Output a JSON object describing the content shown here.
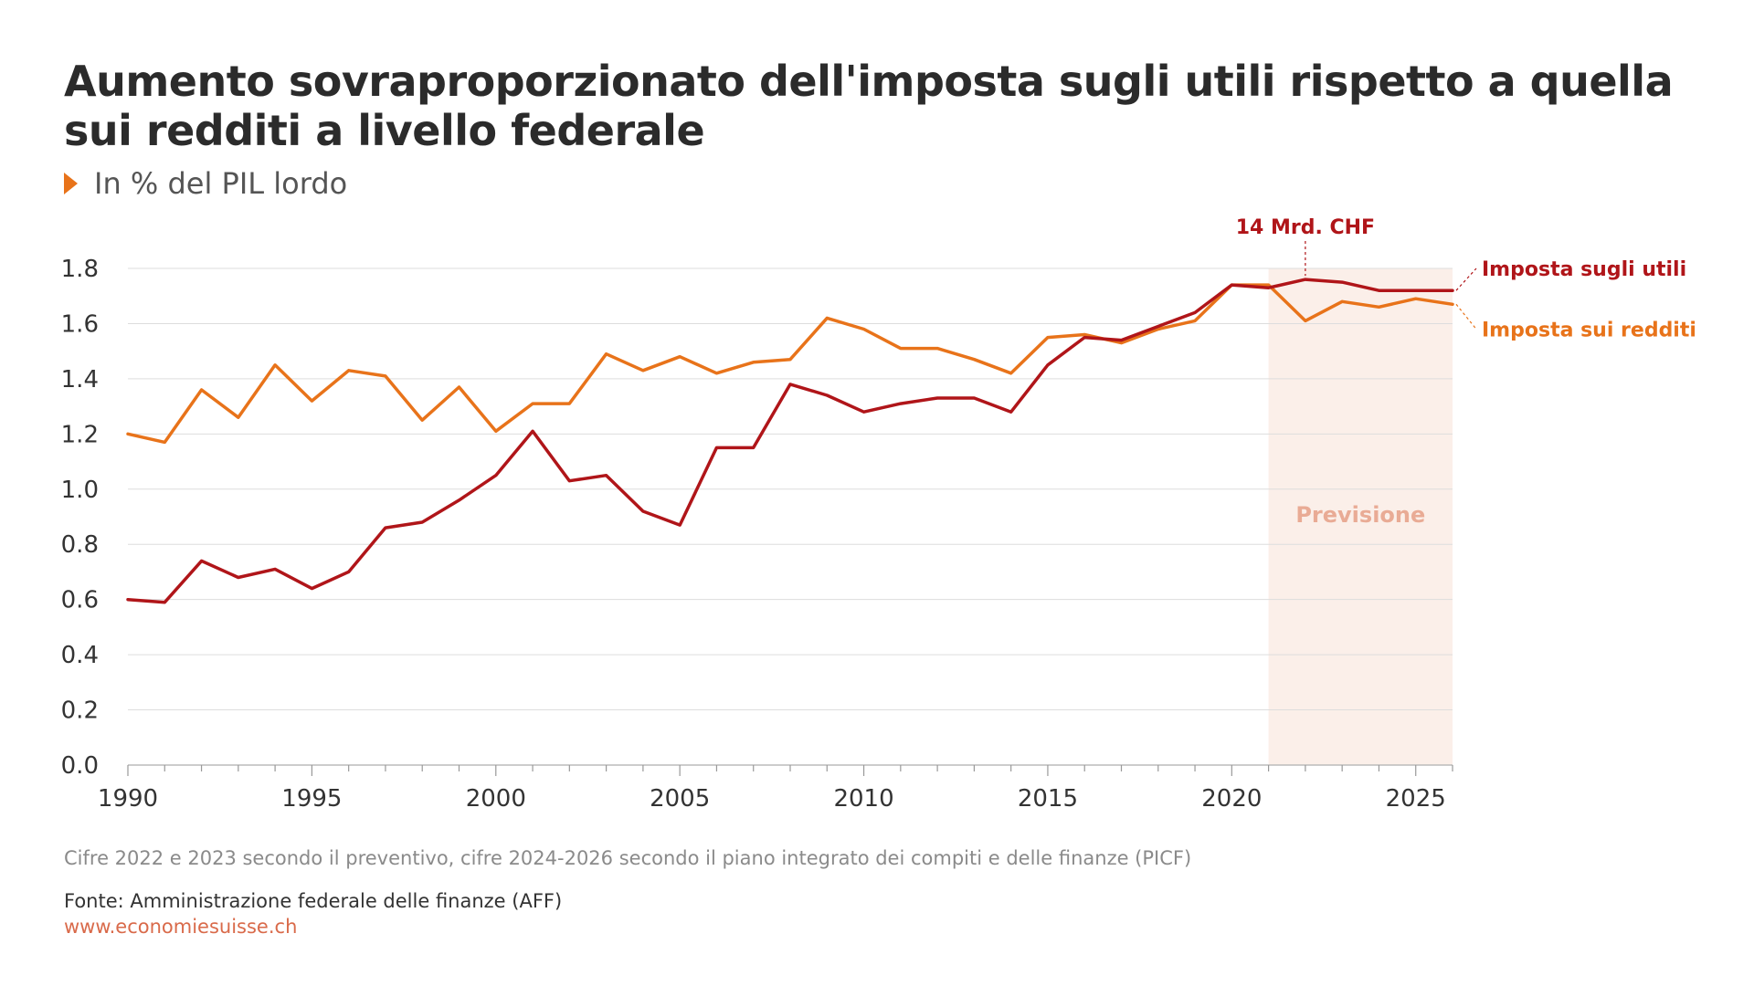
{
  "header": {
    "title": "Aumento sovraproporzionato dell'imposta sugli utili rispetto a quella sui redditi a livello federale",
    "subtitle": "In % del PIL lordo"
  },
  "footer": {
    "note": "Cifre 2022 e 2023 secondo il preventivo, cifre 2024-2026 secondo il piano integrato dei compiti e delle finanze (PICF)",
    "source": "Fonte: Amministrazione federale delle finanze (AFF)",
    "website": "www.economiesuisse.ch"
  },
  "colors": {
    "accent": "#e8731a",
    "utili": "#b01519",
    "redditi": "#e8731a",
    "forecast_band": "#fbefe9",
    "forecast_text": "#e9ab95",
    "grid": "#dddddd"
  },
  "chart_data": {
    "type": "line",
    "x": [
      1990,
      1991,
      1992,
      1993,
      1994,
      1995,
      1996,
      1997,
      1998,
      1999,
      2000,
      2001,
      2002,
      2003,
      2004,
      2005,
      2006,
      2007,
      2008,
      2009,
      2010,
      2011,
      2012,
      2013,
      2014,
      2015,
      2016,
      2017,
      2018,
      2019,
      2020,
      2021,
      2022,
      2023,
      2024,
      2025,
      2026
    ],
    "series": [
      {
        "name": "Imposta sugli utili",
        "color": "#b01519",
        "values": [
          0.6,
          0.59,
          0.74,
          0.68,
          0.71,
          0.64,
          0.7,
          0.86,
          0.88,
          0.96,
          1.05,
          1.21,
          1.03,
          1.05,
          0.92,
          0.87,
          1.15,
          1.15,
          1.38,
          1.34,
          1.28,
          1.31,
          1.33,
          1.33,
          1.28,
          1.45,
          1.55,
          1.54,
          1.59,
          1.64,
          1.74,
          1.73,
          1.76,
          1.75,
          1.72,
          1.72,
          1.72
        ]
      },
      {
        "name": "Imposta sui redditi",
        "color": "#e8731a",
        "values": [
          1.2,
          1.17,
          1.36,
          1.26,
          1.45,
          1.32,
          1.43,
          1.41,
          1.25,
          1.37,
          1.21,
          1.31,
          1.31,
          1.49,
          1.43,
          1.48,
          1.42,
          1.46,
          1.47,
          1.62,
          1.58,
          1.51,
          1.51,
          1.47,
          1.42,
          1.55,
          1.56,
          1.53,
          1.58,
          1.61,
          1.74,
          1.74,
          1.61,
          1.68,
          1.66,
          1.69,
          1.67
        ]
      }
    ],
    "x_ticks": [
      1990,
      1995,
      2000,
      2005,
      2010,
      2015,
      2020,
      2025
    ],
    "y_ticks": [
      "0.0",
      "0.2",
      "0.4",
      "0.6",
      "0.8",
      "1.0",
      "1.2",
      "1.4",
      "1.6",
      "1.8"
    ],
    "xlim": [
      1990,
      2026
    ],
    "ylim": [
      0,
      1.8
    ],
    "grid": true,
    "forecast": {
      "from": 2021,
      "to": 2026,
      "label": "Previsione"
    },
    "annotation": {
      "text": "14 Mrd. CHF",
      "x": 2022,
      "y": 1.76
    },
    "title": "Aumento sovraproporzionato dell'imposta sugli utili rispetto a quella sui redditi a livello federale",
    "ylabel": "In % del PIL lordo"
  }
}
